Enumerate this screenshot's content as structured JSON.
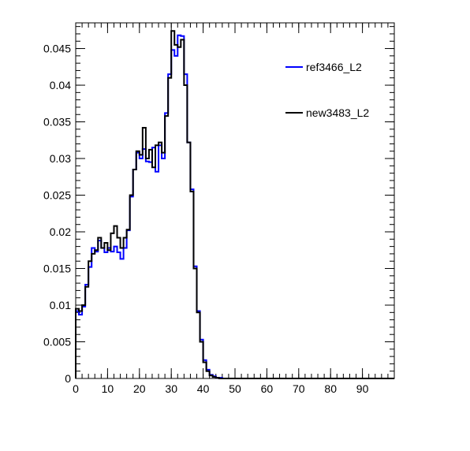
{
  "chart_data": {
    "type": "step-histogram",
    "title": "",
    "xlabel": "",
    "ylabel": "",
    "xlim": [
      0,
      100
    ],
    "ylim": [
      0,
      0.0485
    ],
    "grid": false,
    "legend_position": "top-right",
    "bin_width": 1,
    "x_tick_labels": [
      "0",
      "10",
      "20",
      "30",
      "40",
      "50",
      "60",
      "70",
      "80",
      "90"
    ],
    "x_tick_values": [
      0,
      10,
      20,
      30,
      40,
      50,
      60,
      70,
      80,
      90
    ],
    "y_tick_labels": [
      "0",
      "0.005",
      "0.01",
      "0.015",
      "0.02",
      "0.025",
      "0.03",
      "0.035",
      "0.04",
      "0.045"
    ],
    "y_tick_values": [
      0,
      0.005,
      0.01,
      0.015,
      0.02,
      0.025,
      0.03,
      0.035,
      0.04,
      0.045
    ],
    "series": [
      {
        "name": "ref3466_L2",
        "color": "#0000ff",
        "values": [
          0.0092,
          0.0087,
          0.0098,
          0.0128,
          0.0152,
          0.0178,
          0.0173,
          0.0188,
          0.0178,
          0.0172,
          0.0178,
          0.0173,
          0.018,
          0.0172,
          0.0163,
          0.0178,
          0.0202,
          0.0248,
          0.0285,
          0.0308,
          0.03,
          0.0313,
          0.0296,
          0.0295,
          0.0315,
          0.0282,
          0.0318,
          0.03,
          0.0362,
          0.0415,
          0.0448,
          0.044,
          0.0468,
          0.0467,
          0.0415,
          0.0322,
          0.0258,
          0.0153,
          0.0092,
          0.0053,
          0.0025,
          0.0012,
          0.0005,
          0.0003,
          0.0001,
          0.0001,
          0,
          0,
          0,
          0,
          0,
          0,
          0,
          0,
          0,
          0,
          0,
          0,
          0,
          0,
          0,
          0,
          0,
          0,
          0,
          0,
          0,
          0,
          0,
          0,
          0,
          0,
          0,
          0,
          0,
          0,
          0,
          0,
          0,
          0,
          0,
          0,
          0,
          0,
          0,
          0,
          0,
          0,
          0,
          0,
          0,
          0,
          0,
          0,
          0,
          0,
          0,
          0,
          0,
          0
        ]
      },
      {
        "name": "new3483_L2",
        "color": "#000000",
        "values": [
          0.0095,
          0.0092,
          0.01,
          0.0125,
          0.016,
          0.017,
          0.0175,
          0.0192,
          0.0178,
          0.0185,
          0.0175,
          0.0198,
          0.0208,
          0.0192,
          0.0178,
          0.0192,
          0.0203,
          0.025,
          0.0285,
          0.031,
          0.0305,
          0.0342,
          0.03,
          0.0312,
          0.0288,
          0.0318,
          0.0322,
          0.0308,
          0.0358,
          0.041,
          0.0474,
          0.0455,
          0.0452,
          0.0462,
          0.04,
          0.0322,
          0.0255,
          0.015,
          0.009,
          0.005,
          0.0022,
          0.001,
          0.0004,
          0.0002,
          0.0001,
          0,
          0,
          0,
          0,
          0,
          0,
          0,
          0,
          0,
          0,
          0,
          0,
          0,
          0,
          0,
          0,
          0,
          0,
          0,
          0,
          0,
          0,
          0,
          0,
          0,
          0,
          0,
          0,
          0,
          0,
          0,
          0,
          0,
          0,
          0,
          0,
          0,
          0,
          0,
          0,
          0,
          0,
          0,
          0,
          0,
          0,
          0,
          0,
          0,
          0,
          0,
          0,
          0,
          0,
          0
        ]
      }
    ]
  }
}
